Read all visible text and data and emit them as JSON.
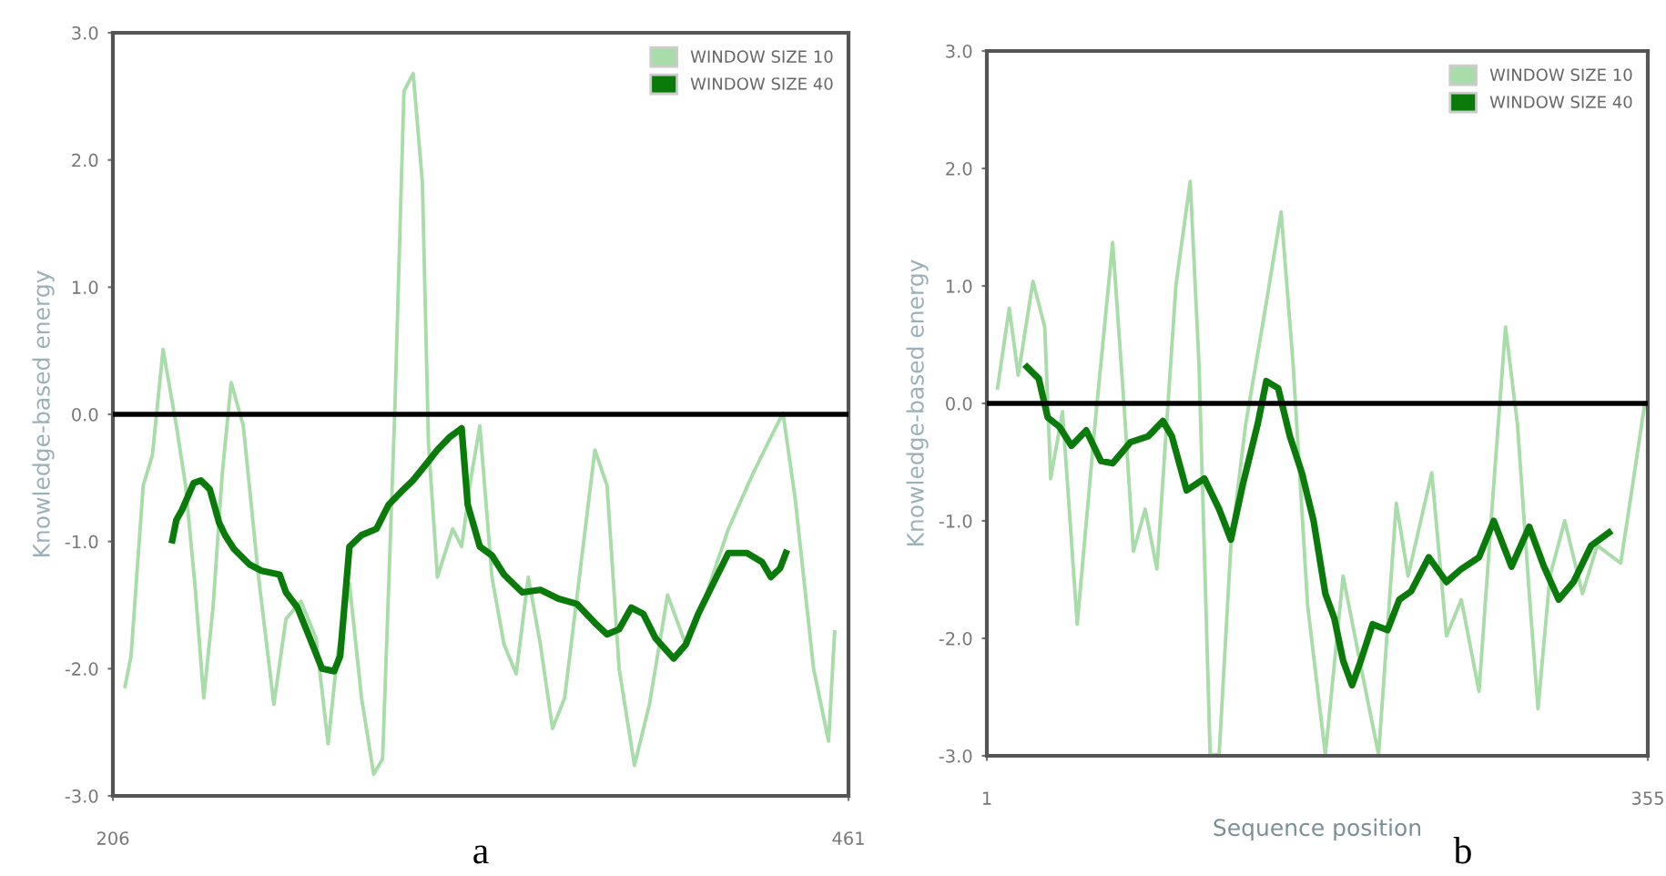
{
  "chart_data": [
    {
      "type": "line",
      "ylabel": "Knowledge-based energy",
      "annotations": [
        "a"
      ],
      "legend": "top right",
      "grid": false,
      "xlim": [
        206,
        461
      ],
      "xticks": [
        206,
        461
      ],
      "ylim": [
        -3,
        3
      ],
      "yticks": [
        {
          "value": -3,
          "label": "-3.0"
        },
        {
          "value": -2,
          "label": "-2.0"
        },
        {
          "value": -1,
          "label": "-1.0"
        },
        {
          "value": 0,
          "label": "0.0"
        },
        {
          "value": 1,
          "label": "1.0"
        },
        {
          "value": 2,
          "label": "2.0"
        },
        {
          "value": 3,
          "label": "3.0"
        }
      ],
      "ref_lines": [
        {
          "axis": "y",
          "value": 0,
          "color": "#000000"
        }
      ],
      "series": [
        {
          "name": "WINDOW SIZE 10",
          "color": "#a8dca8",
          "x": [
            210.2,
            212.3,
            216.5,
            219.7,
            223.4,
            228,
            231.2,
            234.4,
            237.5,
            240.7,
            243.9,
            247,
            251.2,
            256.5,
            261.8,
            266,
            271.2,
            276.4,
            280.6,
            283.8,
            288,
            292.2,
            296.4,
            299.5,
            303.7,
            306.9,
            310.1,
            313.3,
            315.4,
            318.5,
            323.8,
            326.9,
            330,
            333.2,
            337.4,
            341.6,
            345.8,
            350,
            354.2,
            358.4,
            362.6,
            369,
            373.1,
            377.3,
            381.5,
            386.8,
            392,
            398.3,
            404.6,
            410.9,
            419.4,
            427.8,
            434.1,
            438.3,
            442.5,
            448.9,
            454.1,
            456.2
          ],
          "values": [
            -2.14,
            -1.9,
            -0.56,
            -0.32,
            0.51,
            -0.09,
            -0.56,
            -1.33,
            -2.23,
            -1.52,
            -0.47,
            0.25,
            -0.09,
            -1.28,
            -2.28,
            -1.61,
            -1.47,
            -1.76,
            -2.59,
            -1.9,
            -1.33,
            -2.23,
            -2.83,
            -2.71,
            0.01,
            2.54,
            2.68,
            1.82,
            -0.23,
            -1.28,
            -0.9,
            -1.04,
            -0.52,
            -0.09,
            -1.28,
            -1.81,
            -2.04,
            -1.28,
            -1.81,
            -2.47,
            -2.23,
            -1.04,
            -0.28,
            -0.56,
            -2.0,
            -2.76,
            -2.28,
            -1.42,
            -1.81,
            -1.47,
            -0.9,
            -0.47,
            -0.18,
            0.01,
            -0.66,
            -2.0,
            -2.57,
            -1.71
          ]
        },
        {
          "name": "WINDOW SIZE 40",
          "color": "#0a7a0a",
          "x": [
            226.6,
            228,
            230,
            234,
            236.5,
            239.6,
            242.8,
            244.9,
            248,
            253.3,
            257.5,
            263.8,
            266,
            270,
            274.3,
            278.5,
            282.7,
            284.8,
            288,
            292.2,
            297.4,
            301.6,
            305.9,
            310,
            314.3,
            318.5,
            322.7,
            326.9,
            329,
            333.2,
            337.4,
            341.6,
            347.9,
            354.2,
            360.5,
            366.8,
            373.1,
            377.3,
            381.5,
            385.7,
            389.9,
            394.1,
            400.4,
            404.6,
            408.9,
            415.2,
            419.4,
            425.7,
            431,
            434.1,
            437.3,
            439.3
          ],
          "values": [
            -0.99,
            -0.83,
            -0.75,
            -0.54,
            -0.52,
            -0.59,
            -0.85,
            -0.95,
            -1.06,
            -1.18,
            -1.23,
            -1.26,
            -1.4,
            -1.52,
            -1.76,
            -2.0,
            -2.02,
            -1.9,
            -1.04,
            -0.95,
            -0.9,
            -0.71,
            -0.61,
            -0.52,
            -0.4,
            -0.28,
            -0.18,
            -0.11,
            -0.71,
            -1.04,
            -1.11,
            -1.26,
            -1.4,
            -1.38,
            -1.45,
            -1.49,
            -1.64,
            -1.73,
            -1.69,
            -1.52,
            -1.57,
            -1.76,
            -1.92,
            -1.81,
            -1.57,
            -1.28,
            -1.09,
            -1.09,
            -1.16,
            -1.28,
            -1.21,
            -1.09
          ]
        }
      ]
    },
    {
      "type": "line",
      "ylabel": "Knowledge-based energy",
      "xlabel": "Sequence position",
      "annotations": [
        "b"
      ],
      "legend": "top right",
      "grid": false,
      "xlim": [
        1,
        355
      ],
      "xticks": [
        1,
        355
      ],
      "ylim": [
        -3,
        3
      ],
      "yticks": [
        {
          "value": -3,
          "label": "-3.0"
        },
        {
          "value": -2,
          "label": "-2.0"
        },
        {
          "value": -1,
          "label": "-1.0"
        },
        {
          "value": 0,
          "label": "0.0"
        },
        {
          "value": 1,
          "label": "1.0"
        },
        {
          "value": 2,
          "label": "2.0"
        },
        {
          "value": 3,
          "label": "3.0"
        }
      ],
      "ref_lines": [
        {
          "axis": "y",
          "value": 0,
          "color": "#000000"
        }
      ],
      "series": [
        {
          "name": "WINDOW SIZE 10",
          "color": "#a8dca8",
          "x": [
            6.7,
            13,
            17.8,
            25.7,
            32,
            35.2,
            41.5,
            49.4,
            58.9,
            68.4,
            74.7,
            79.5,
            85.8,
            92.1,
            102.3,
            109.9,
            114.6,
            120.6,
            125.4,
            131.7,
            139.6,
            150.7,
            158.6,
            165,
            172.8,
            182.3,
            191.8,
            201.3,
            210.8,
            220.3,
            226.6,
            239.3,
            247.2,
            255.1,
            264.6,
            272.5,
            278.8,
            285.2,
            291.5,
            296.2,
            302.6,
            310.5,
            320,
            327.9,
            340.5,
            346.9,
            353.2
          ],
          "values": [
            0.13,
            0.81,
            0.24,
            1.04,
            0.65,
            -0.64,
            -0.07,
            -1.88,
            -0.18,
            1.37,
            -0.07,
            -1.26,
            -0.9,
            -1.41,
            1.01,
            1.89,
            0.34,
            -2.99,
            -2.99,
            -1.21,
            -0.18,
            0.86,
            1.63,
            0.34,
            -1.72,
            -2.99,
            -1.47,
            -2.24,
            -2.99,
            -0.85,
            -1.47,
            -0.59,
            -1.98,
            -1.67,
            -2.45,
            -0.69,
            0.65,
            -0.18,
            -1.62,
            -2.6,
            -1.47,
            -1.0,
            -1.62,
            -1.21,
            -1.36,
            -0.69,
            -0.02
          ]
        },
        {
          "name": "WINDOW SIZE 40",
          "color": "#0a7a0a",
          "x": [
            22.5,
            28.8,
            33.6,
            39.9,
            46.3,
            54.2,
            62.1,
            68.4,
            77.9,
            87.4,
            95.3,
            100.1,
            108,
            117.5,
            125.4,
            131.7,
            138.1,
            146,
            150.7,
            157,
            163.3,
            169.7,
            176,
            182.3,
            187.1,
            191.8,
            196.6,
            201.3,
            207.6,
            215.6,
            221.9,
            228.2,
            237.7,
            247.2,
            255.1,
            264.6,
            272.5,
            282,
            291.5,
            299.4,
            307.3,
            315.2,
            324.7,
            334.2
          ],
          "values": [
            0.31,
            0.21,
            -0.12,
            -0.2,
            -0.36,
            -0.23,
            -0.49,
            -0.51,
            -0.33,
            -0.28,
            -0.15,
            -0.28,
            -0.74,
            -0.64,
            -0.9,
            -1.16,
            -0.69,
            -0.18,
            0.19,
            0.13,
            -0.28,
            -0.59,
            -1.0,
            -1.62,
            -1.83,
            -2.19,
            -2.4,
            -2.19,
            -1.88,
            -1.93,
            -1.67,
            -1.6,
            -1.31,
            -1.52,
            -1.41,
            -1.31,
            -1.0,
            -1.39,
            -1.05,
            -1.39,
            -1.67,
            -1.52,
            -1.21,
            -1.1
          ]
        }
      ]
    }
  ]
}
